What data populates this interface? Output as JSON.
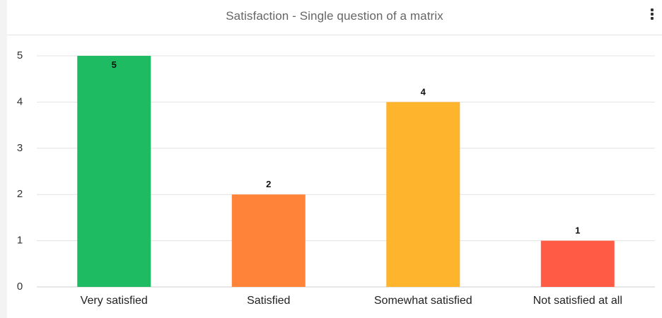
{
  "widget": {
    "title": "Satisfaction - Single question of a matrix",
    "menu_icon": "more-vertical-icon"
  },
  "chart_data": {
    "type": "bar",
    "title": "Satisfaction - Single question of a matrix",
    "categories": [
      "Very satisfied",
      "Satisfied",
      "Somewhat satisfied",
      "Not satisfied at all"
    ],
    "values": [
      5,
      2,
      4,
      1
    ],
    "colors": [
      "#1fbb63",
      "#ff8338",
      "#feb42c",
      "#ff5b45"
    ],
    "data_labels": [
      "5",
      "2",
      "4",
      "1"
    ],
    "y_ticks": [
      "0",
      "1",
      "2",
      "3",
      "4",
      "5"
    ],
    "ylim": [
      0,
      5
    ],
    "xlabel": "",
    "ylabel": "",
    "grid": true,
    "legend": "none"
  }
}
